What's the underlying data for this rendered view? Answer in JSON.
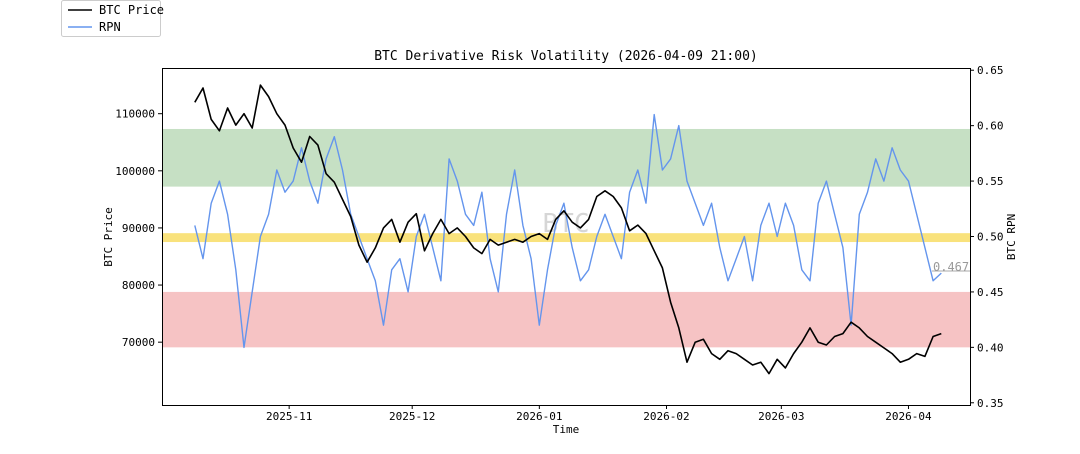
{
  "chart_data": {
    "type": "line",
    "title": "BTC Derivative Risk Volatility (2026-04-09 21:00)",
    "xlabel": "Time",
    "ylabel_left": "BTC Price",
    "ylabel_right": "BTC RPN",
    "x_ticks": [
      "2025-11",
      "2025-12",
      "2026-01",
      "2026-02",
      "2026-03",
      "2026-04"
    ],
    "x_range": [
      "2025-10-01",
      "2026-04-16"
    ],
    "y_left_ticks": [
      70000,
      80000,
      90000,
      100000,
      110000
    ],
    "y_left_range": [
      59000,
      118000
    ],
    "y_right_ticks": [
      0.35,
      0.4,
      0.45,
      0.5,
      0.55,
      0.6,
      0.65
    ],
    "y_right_range": [
      0.348,
      0.652
    ],
    "legend": {
      "position": "outside top-left",
      "entries": [
        "BTC Price",
        "RPN"
      ]
    },
    "watermark": "BTC",
    "last_value_label": "0.467",
    "bands": [
      {
        "axis": "right",
        "from": 0.545,
        "to": 0.597,
        "color": "#c6e0c4"
      },
      {
        "axis": "right",
        "from": 0.495,
        "to": 0.503,
        "color": "#f9e27c"
      },
      {
        "axis": "right",
        "from": 0.4,
        "to": 0.45,
        "color": "#f6c3c4"
      }
    ],
    "series": [
      {
        "name": "BTC Price",
        "axis": "left",
        "color": "#000000",
        "x": [
          "2025-10-09",
          "2025-10-11",
          "2025-10-13",
          "2025-10-15",
          "2025-10-17",
          "2025-10-19",
          "2025-10-21",
          "2025-10-23",
          "2025-10-25",
          "2025-10-27",
          "2025-10-29",
          "2025-10-31",
          "2025-11-02",
          "2025-11-04",
          "2025-11-06",
          "2025-11-08",
          "2025-11-10",
          "2025-11-12",
          "2025-11-14",
          "2025-11-16",
          "2025-11-18",
          "2025-11-20",
          "2025-11-22",
          "2025-11-24",
          "2025-11-26",
          "2025-11-28",
          "2025-11-30",
          "2025-12-02",
          "2025-12-04",
          "2025-12-06",
          "2025-12-08",
          "2025-12-10",
          "2025-12-12",
          "2025-12-14",
          "2025-12-16",
          "2025-12-18",
          "2025-12-20",
          "2025-12-22",
          "2025-12-24",
          "2025-12-26",
          "2025-12-28",
          "2025-12-30",
          "2026-01-01",
          "2026-01-03",
          "2026-01-05",
          "2026-01-07",
          "2026-01-09",
          "2026-01-11",
          "2026-01-13",
          "2026-01-15",
          "2026-01-17",
          "2026-01-19",
          "2026-01-21",
          "2026-01-23",
          "2026-01-25",
          "2026-01-27",
          "2026-01-29",
          "2026-01-31",
          "2026-02-02",
          "2026-02-04",
          "2026-02-06",
          "2026-02-08",
          "2026-02-10",
          "2026-02-12",
          "2026-02-14",
          "2026-02-16",
          "2026-02-18",
          "2026-02-20",
          "2026-02-22",
          "2026-02-24",
          "2026-02-26",
          "2026-02-28",
          "2026-03-02",
          "2026-03-04",
          "2026-03-06",
          "2026-03-08",
          "2026-03-10",
          "2026-03-12",
          "2026-03-14",
          "2026-03-16",
          "2026-03-18",
          "2026-03-20",
          "2026-03-22",
          "2026-03-24",
          "2026-03-26",
          "2026-03-28",
          "2026-03-30",
          "2026-04-01",
          "2026-04-03",
          "2026-04-05",
          "2026-04-07",
          "2026-04-09"
        ],
        "values": [
          112000,
          114500,
          109000,
          107000,
          111000,
          108000,
          110000,
          107500,
          115000,
          113000,
          110000,
          108000,
          104000,
          101500,
          106000,
          104500,
          99500,
          98000,
          95000,
          92000,
          87000,
          84000,
          86500,
          90000,
          91500,
          87500,
          91000,
          92500,
          86000,
          89000,
          91500,
          89000,
          90000,
          88500,
          86500,
          85500,
          88000,
          87000,
          87500,
          88000,
          87500,
          88500,
          89000,
          88000,
          91500,
          93000,
          91000,
          90000,
          91500,
          95500,
          96500,
          95500,
          93500,
          89500,
          90500,
          89000,
          86000,
          83000,
          77000,
          72500,
          66500,
          70000,
          70500,
          68000,
          67000,
          68500,
          68000,
          67000,
          66000,
          66500,
          64500,
          67000,
          65500,
          68000,
          70000,
          72500,
          70000,
          69500,
          71000,
          71500,
          73500,
          72500,
          71000,
          70000,
          69000,
          68000,
          66500,
          67000,
          68000,
          67500,
          71000,
          71500
        ]
      },
      {
        "name": "RPN",
        "axis": "right",
        "color": "#6495ed",
        "x": [
          "2025-10-09",
          "2025-10-11",
          "2025-10-13",
          "2025-10-15",
          "2025-10-17",
          "2025-10-19",
          "2025-10-21",
          "2025-10-23",
          "2025-10-25",
          "2025-10-27",
          "2025-10-29",
          "2025-10-31",
          "2025-11-02",
          "2025-11-04",
          "2025-11-06",
          "2025-11-08",
          "2025-11-10",
          "2025-11-12",
          "2025-11-14",
          "2025-11-16",
          "2025-11-18",
          "2025-11-20",
          "2025-11-22",
          "2025-11-24",
          "2025-11-26",
          "2025-11-28",
          "2025-11-30",
          "2025-12-02",
          "2025-12-04",
          "2025-12-06",
          "2025-12-08",
          "2025-12-10",
          "2025-12-12",
          "2025-12-14",
          "2025-12-16",
          "2025-12-18",
          "2025-12-20",
          "2025-12-22",
          "2025-12-24",
          "2025-12-26",
          "2025-12-28",
          "2025-12-30",
          "2026-01-01",
          "2026-01-03",
          "2026-01-05",
          "2026-01-07",
          "2026-01-09",
          "2026-01-11",
          "2026-01-13",
          "2026-01-15",
          "2026-01-17",
          "2026-01-19",
          "2026-01-21",
          "2026-01-23",
          "2026-01-25",
          "2026-01-27",
          "2026-01-29",
          "2026-01-31",
          "2026-02-02",
          "2026-02-04",
          "2026-02-06",
          "2026-02-08",
          "2026-02-10",
          "2026-02-12",
          "2026-02-14",
          "2026-02-16",
          "2026-02-18",
          "2026-02-20",
          "2026-02-22",
          "2026-02-24",
          "2026-02-26",
          "2026-02-28",
          "2026-03-02",
          "2026-03-04",
          "2026-03-06",
          "2026-03-08",
          "2026-03-10",
          "2026-03-12",
          "2026-03-14",
          "2026-03-16",
          "2026-03-18",
          "2026-03-20",
          "2026-03-22",
          "2026-03-24",
          "2026-03-26",
          "2026-03-28",
          "2026-03-30",
          "2026-04-01",
          "2026-04-03",
          "2026-04-05",
          "2026-04-07",
          "2026-04-09"
        ],
        "values": [
          0.51,
          0.48,
          0.53,
          0.55,
          0.52,
          0.47,
          0.4,
          0.45,
          0.5,
          0.52,
          0.56,
          0.54,
          0.55,
          0.58,
          0.55,
          0.53,
          0.57,
          0.59,
          0.56,
          0.52,
          0.5,
          0.48,
          0.46,
          0.42,
          0.47,
          0.48,
          0.45,
          0.5,
          0.52,
          0.49,
          0.46,
          0.57,
          0.55,
          0.52,
          0.51,
          0.54,
          0.48,
          0.45,
          0.52,
          0.56,
          0.51,
          0.48,
          0.42,
          0.47,
          0.51,
          0.53,
          0.49,
          0.46,
          0.47,
          0.5,
          0.52,
          0.5,
          0.48,
          0.54,
          0.56,
          0.53,
          0.61,
          0.56,
          0.57,
          0.6,
          0.55,
          0.53,
          0.51,
          0.53,
          0.49,
          0.46,
          0.48,
          0.5,
          0.46,
          0.51,
          0.53,
          0.5,
          0.53,
          0.51,
          0.47,
          0.46,
          0.53,
          0.55,
          0.52,
          0.49,
          0.42,
          0.52,
          0.54,
          0.57,
          0.55,
          0.58,
          0.56,
          0.55,
          0.52,
          0.49,
          0.46,
          0.467
        ]
      }
    ]
  }
}
